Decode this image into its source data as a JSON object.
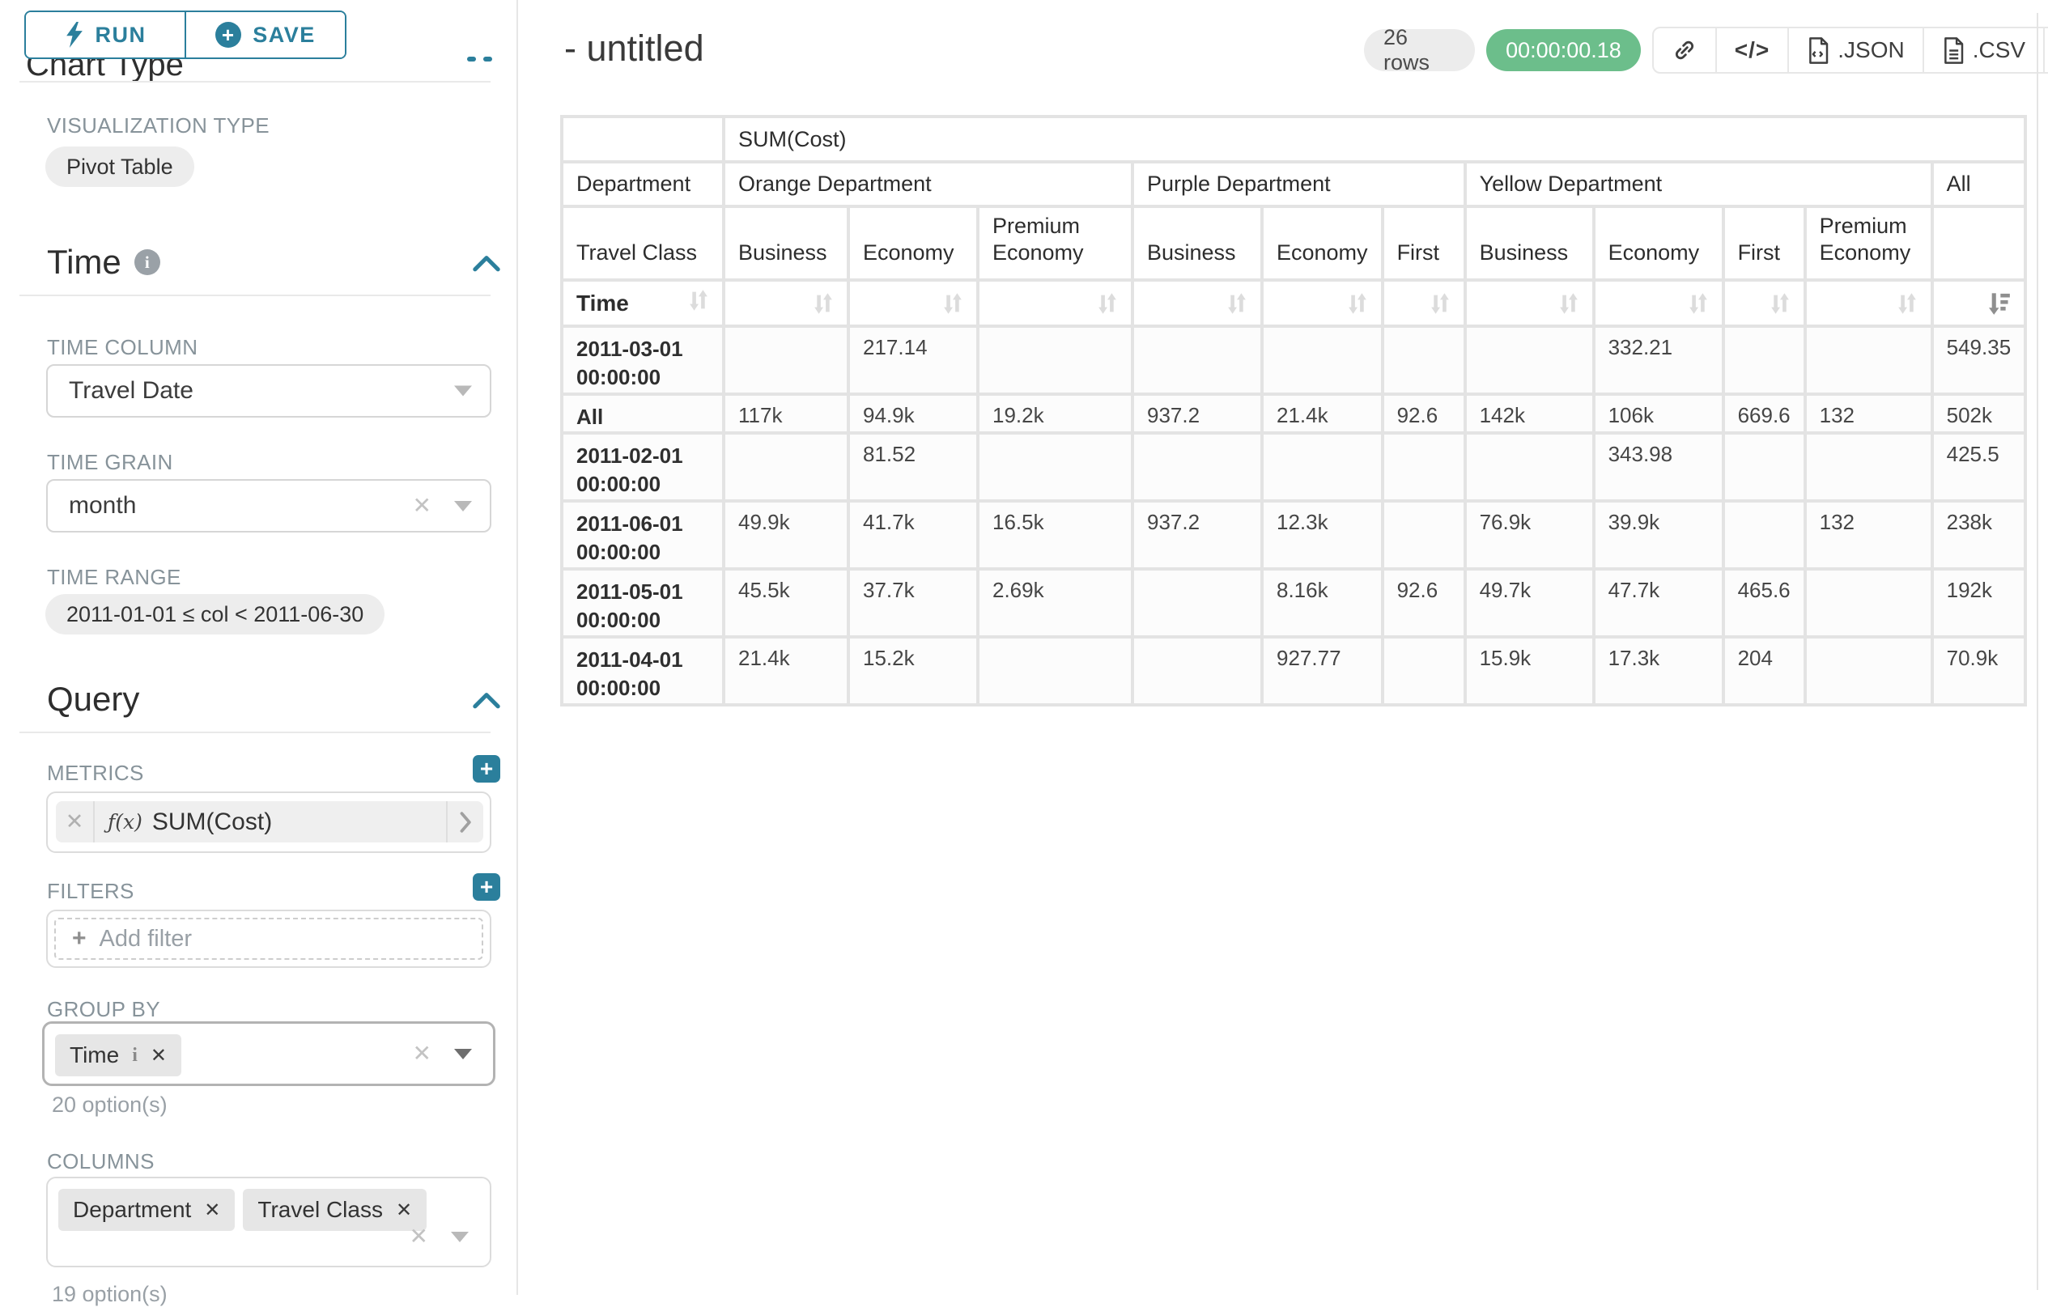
{
  "colors": {
    "accent": "#2B7F9C",
    "success": "#6CBE8B"
  },
  "toolbar": {
    "run": "RUN",
    "save": "SAVE"
  },
  "panel": {
    "chart_type_title": "Chart Type",
    "viz_label": "VISUALIZATION TYPE",
    "viz_value": "Pivot Table",
    "time": {
      "title": "Time",
      "column_label": "TIME COLUMN",
      "column_value": "Travel Date",
      "grain_label": "TIME GRAIN",
      "grain_value": "month",
      "range_label": "TIME RANGE",
      "range_value": "2011-01-01 ≤ col < 2011-06-30"
    },
    "query": {
      "title": "Query",
      "metrics_label": "METRICS",
      "metric_fx": "ƒ(x)",
      "metric_name": "SUM(Cost)",
      "filters_label": "FILTERS",
      "add_filter_label": "Add filter",
      "group_by_label": "GROUP BY",
      "group_by_chips": [
        {
          "label": "Time",
          "info": true
        }
      ],
      "group_by_options": "20 option(s)",
      "columns_label": "COLUMNS",
      "columns_chips": [
        {
          "label": "Department"
        },
        {
          "label": "Travel Class"
        }
      ],
      "columns_options": "19 option(s)"
    }
  },
  "header": {
    "title": "- untitled",
    "rows_badge": "26 rows",
    "timer": "00:00:00.18",
    "export_json": ".JSON",
    "export_csv": ".CSV"
  },
  "pivot": {
    "metric_header": "SUM(Cost)",
    "department_label": "Department",
    "travel_class_label": "Travel Class",
    "time_label": "Time",
    "departments": [
      {
        "name": "Orange Department",
        "span": 3
      },
      {
        "name": "Purple Department",
        "span": 3
      },
      {
        "name": "Yellow Department",
        "span": 4
      },
      {
        "name": "All",
        "span": 1
      }
    ],
    "travel_classes": [
      "Business",
      "Economy",
      "Premium Economy",
      "Business",
      "Economy",
      "First",
      "Business",
      "Economy",
      "First",
      "Premium Economy",
      ""
    ],
    "rows": [
      {
        "label": "2011-03-01 00:00:00",
        "values": [
          "",
          "217.14",
          "",
          "",
          "",
          "",
          "",
          "332.21",
          "",
          "",
          "549.35"
        ]
      },
      {
        "label": "All",
        "values": [
          "117k",
          "94.9k",
          "19.2k",
          "937.2",
          "21.4k",
          "92.6",
          "142k",
          "106k",
          "669.6",
          "132",
          "502k"
        ]
      },
      {
        "label": "2011-02-01 00:00:00",
        "values": [
          "",
          "81.52",
          "",
          "",
          "",
          "",
          "",
          "343.98",
          "",
          "",
          "425.5"
        ]
      },
      {
        "label": "2011-06-01 00:00:00",
        "values": [
          "49.9k",
          "41.7k",
          "16.5k",
          "937.2",
          "12.3k",
          "",
          "76.9k",
          "39.9k",
          "",
          "132",
          "238k"
        ]
      },
      {
        "label": "2011-05-01 00:00:00",
        "values": [
          "45.5k",
          "37.7k",
          "2.69k",
          "",
          "8.16k",
          "92.6",
          "49.7k",
          "47.7k",
          "465.6",
          "",
          "192k"
        ]
      },
      {
        "label": "2011-04-01 00:00:00",
        "values": [
          "21.4k",
          "15.2k",
          "",
          "",
          "927.77",
          "",
          "15.9k",
          "17.3k",
          "204",
          "",
          "70.9k"
        ]
      }
    ]
  }
}
